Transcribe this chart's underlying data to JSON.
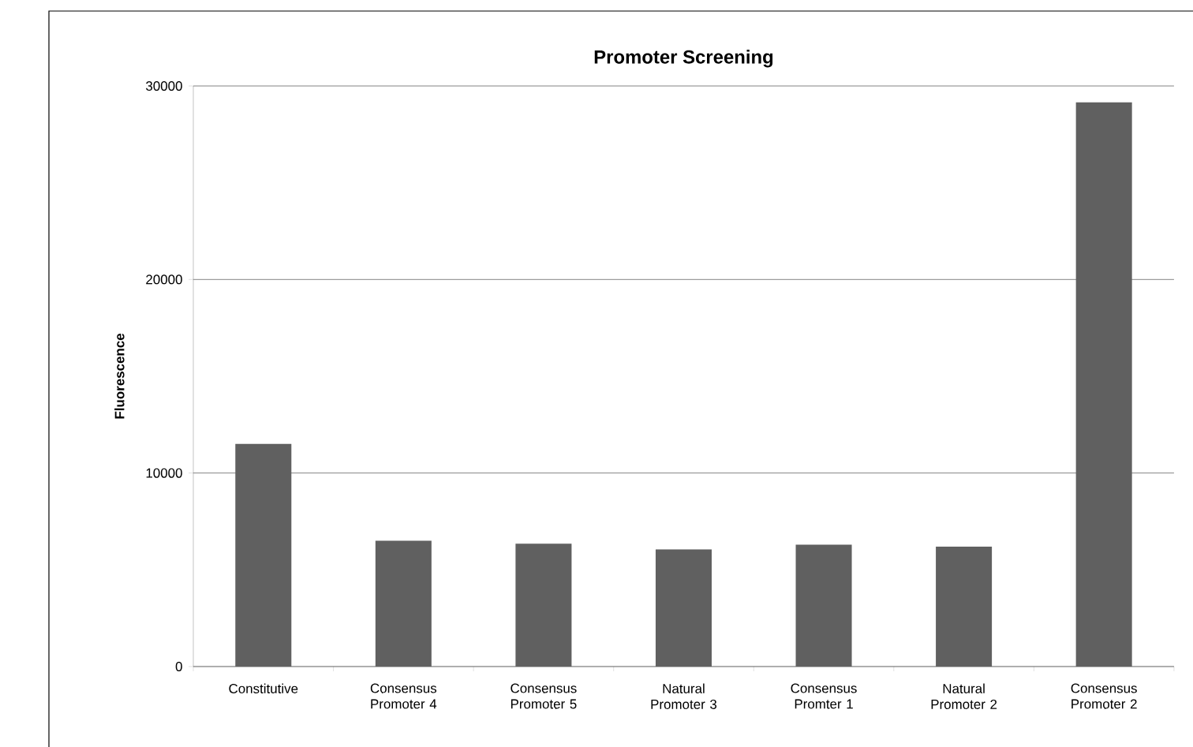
{
  "chart_data": {
    "type": "bar",
    "title": "Promoter Screening",
    "ylabel": "Fluorescence",
    "categories": [
      "Constitutive",
      "Consensus Promoter 4",
      "Consensus Promoter 5",
      "Natural Promoter 3",
      "Consensus Promter 1",
      "Natural Promoter 2",
      "Consensus Promoter 2"
    ],
    "values": [
      11500,
      6500,
      6350,
      6050,
      6300,
      6200,
      29150
    ],
    "color": "#606060",
    "ylim": [
      0,
      30000
    ],
    "yticks": [
      0,
      10000,
      20000,
      30000
    ],
    "grid": "y"
  }
}
